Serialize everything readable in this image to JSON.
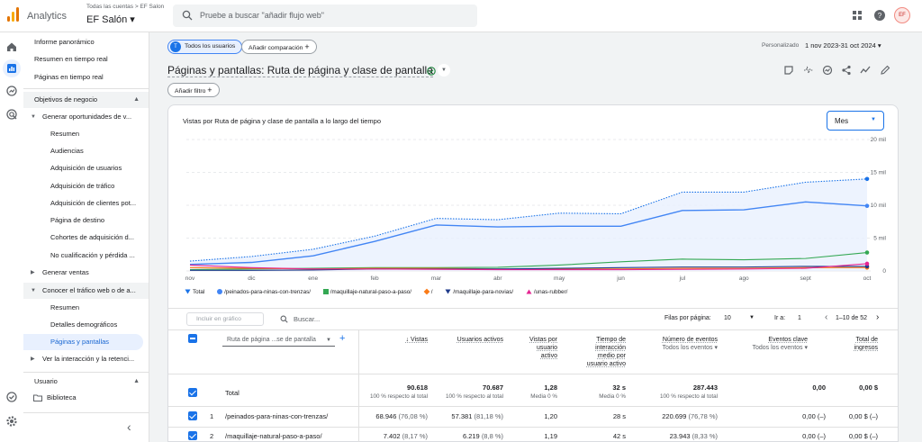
{
  "header": {
    "app_title": "Analytics",
    "breadcrumb": "Todas las cuentas > EF Salon",
    "property": "EF Salón ▾",
    "search_placeholder": "Pruebe a buscar \"añadir flujo web\"",
    "avatar": "EF"
  },
  "nav": {
    "top_items": [
      "Informe panorámico",
      "Resumen en tiempo real",
      "Páginas en tiempo real"
    ],
    "section_objetivos": "Objetivos de negocio",
    "group_generar_oportunidades": "Generar oportunidades de v...",
    "sub_items_1": [
      "Resumen",
      "Audiencias",
      "Adquisición de usuarios",
      "Adquisición de tráfico",
      "Adquisición de clientes pot...",
      "Página de destino",
      "Cohortes de adquisición d...",
      "No cualificación y pérdida ..."
    ],
    "group_generar_ventas": "Generar ventas",
    "group_conocer_trafico": "Conocer el tráfico web o de a...",
    "sub_items_2": [
      "Resumen",
      "Detalles demográficos",
      "Páginas y pantallas"
    ],
    "group_ver_interaccion": "Ver la interacción y la retenci...",
    "section_usuario": "Usuario",
    "biblioteca": "Biblioteca",
    "collapse": "‹"
  },
  "toolbar": {
    "chip_users": "Todos los usuarios",
    "chip_users_letter": "T",
    "chip_compare": "Añadir comparación",
    "add_filter": "Añadir filtro",
    "date_label": "Personalizado",
    "date_range": "1 nov 2023-31 oct 2024 ▾",
    "page_title": "Páginas y pantallas: Ruta de página y clase de pantalla"
  },
  "chart": {
    "title": "Vistas por Ruta de página y clase de pantalla a lo largo del tiempo",
    "granularity": "Mes",
    "legend": [
      "Total",
      "/peinados-para-ninas-con-trenzas/",
      "/maquillaje-natural-paso-a-paso/",
      "/",
      "/maquillaje-para-novias/",
      "/unas-rubber/"
    ]
  },
  "chart_data": {
    "type": "line",
    "title": "Vistas por Ruta de página y clase de pantalla a lo largo del tiempo",
    "xlabel": "",
    "ylabel": "",
    "categories": [
      "nov",
      "dic",
      "ene",
      "feb",
      "mar",
      "abr",
      "may",
      "jun",
      "jul",
      "ago",
      "sept",
      "oct"
    ],
    "y_ticks": [
      "0",
      "5 mil",
      "10 mil",
      "15 mil",
      "20 mil"
    ],
    "ylim": [
      0,
      20000
    ],
    "series": [
      {
        "name": "Total",
        "color": "#1a73e8",
        "values": [
          1500,
          2200,
          3300,
          5300,
          8000,
          7800,
          8800,
          8700,
          12000,
          12000,
          13500,
          14000
        ]
      },
      {
        "name": "/peinados-para-ninas-con-trenzas/",
        "color": "#4285f4",
        "values": [
          1000,
          1300,
          2300,
          4500,
          7000,
          6700,
          6800,
          6800,
          9200,
          9300,
          10500,
          9900
        ]
      },
      {
        "name": "/maquillaje-natural-paso-a-paso/",
        "color": "#34a853",
        "values": [
          200,
          300,
          400,
          500,
          500,
          550,
          900,
          1400,
          1800,
          1700,
          1900,
          2800
        ]
      },
      {
        "name": "/",
        "color": "#fa7b17",
        "values": [
          500,
          400,
          300,
          400,
          400,
          300,
          300,
          300,
          400,
          400,
          500,
          500
        ]
      },
      {
        "name": "/maquillaje-para-novias/",
        "color": "#1e3a8a",
        "values": [
          100,
          100,
          150,
          300,
          300,
          300,
          400,
          500,
          600,
          600,
          700,
          700
        ]
      },
      {
        "name": "/unas-rubber/",
        "color": "#e52592",
        "values": [
          900,
          500,
          300,
          300,
          250,
          200,
          200,
          200,
          250,
          300,
          400,
          1100
        ]
      }
    ]
  },
  "table": {
    "include_placeholder": "Incluir en gráfico",
    "search_placeholder": "Buscar...",
    "rows_per_page_label": "Filas por página:",
    "rows_per_page": "10",
    "goto_label": "Ir a:",
    "goto_value": "1",
    "range": "1–10 de 52",
    "dimension": "Ruta de página ...se de pantalla",
    "columns": [
      "Vistas",
      "Usuarios activos",
      "Vistas por usuario activo",
      "Tiempo de interacción medio por usuario activo",
      "Número de eventos",
      "Eventos clave",
      "Total de ingresos"
    ],
    "col_vistas": "↓ Vistas",
    "col_usuarios": "Usuarios activos",
    "col_vpu_1": "Vistas por",
    "col_vpu_2": "usuario",
    "col_vpu_3": "activo",
    "col_time_1": "Tiempo de",
    "col_time_2": "interacción",
    "col_time_3": "medio por",
    "col_time_4": "usuario activo",
    "col_eventos": "Número de eventos",
    "col_eventos_sub": "Todos los eventos ▾",
    "col_clave": "Eventos clave",
    "col_clave_sub": "Todos los eventos ▾",
    "col_ingresos_1": "Total de",
    "col_ingresos_2": "ingresos",
    "total": {
      "label": "Total",
      "vistas": "90.618",
      "vistas_sub": "100 % respecto al total",
      "usuarios": "70.687",
      "usuarios_sub": "100 % respecto al total",
      "vpu": "1,28",
      "vpu_sub": "Media 0 %",
      "tiempo": "32 s",
      "tiempo_sub": "Media 0 %",
      "eventos": "287.443",
      "eventos_sub": "100 % respecto al total",
      "clave": "0,00",
      "ingresos": "0,00 $"
    },
    "rows": [
      {
        "n": "1",
        "path": "/peinados-para-ninas-con-trenzas/",
        "vistas": "68.946",
        "vistas_pct": "(76,08 %)",
        "usuarios": "57.381",
        "usuarios_pct": "(81,18 %)",
        "vpu": "1,20",
        "tiempo": "28 s",
        "eventos": "220.699",
        "eventos_pct": "(76,78 %)",
        "clave": "0,00 (–)",
        "ingresos": "0,00 $ (–)"
      },
      {
        "n": "2",
        "path": "/maquillaje-natural-paso-a-paso/",
        "vistas": "7.402",
        "vistas_pct": "(8,17 %)",
        "usuarios": "6.219",
        "usuarios_pct": "(8,8 %)",
        "vpu": "1,19",
        "tiempo": "42 s",
        "eventos": "23.943",
        "eventos_pct": "(8,33 %)",
        "clave": "0,00 (–)",
        "ingresos": "0,00 $ (–)"
      }
    ]
  }
}
